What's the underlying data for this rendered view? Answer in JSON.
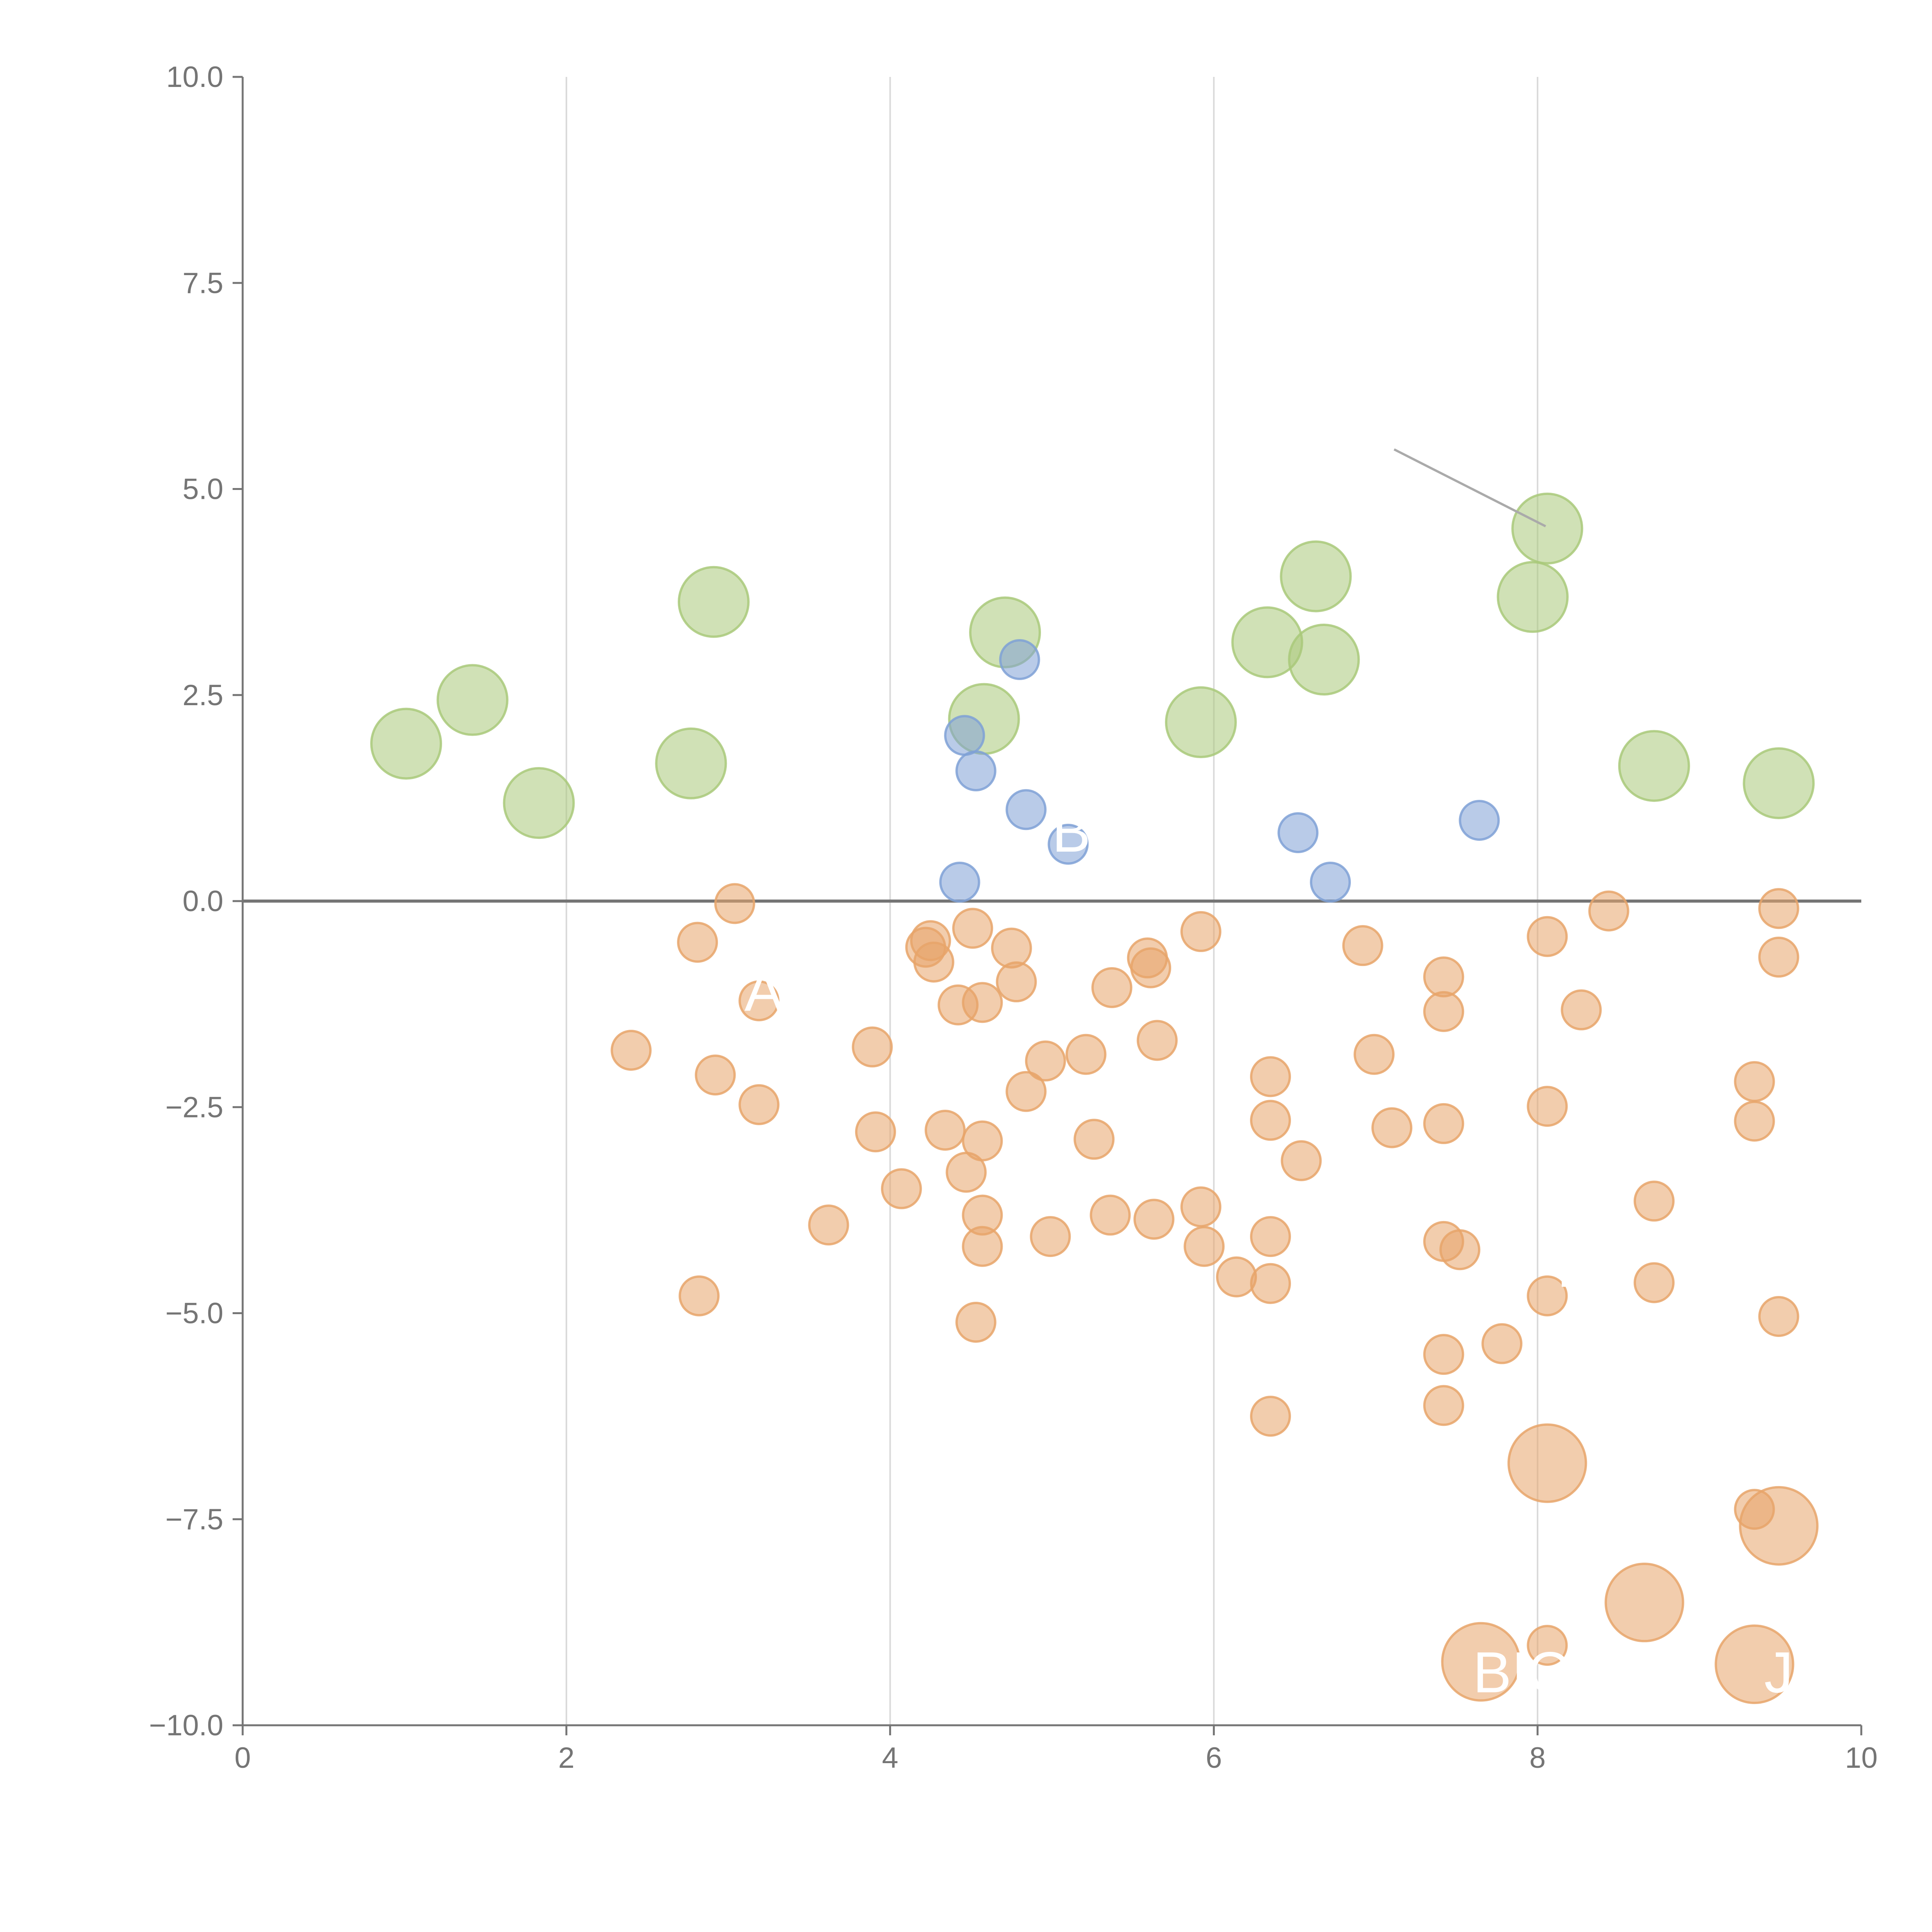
{
  "chart_data": {
    "type": "scatter",
    "title": "",
    "xlabel": "",
    "ylabel": "",
    "xlim": [
      0,
      10
    ],
    "ylim": [
      -10,
      10
    ],
    "x_ticks": [
      "0",
      "2",
      "4",
      "6",
      "8",
      "10"
    ],
    "y_ticks": [
      "10.0",
      "7.5",
      "5.0",
      "2.5",
      "0.0",
      "−2.5",
      "−5.0",
      "−7.5",
      "−10.0"
    ],
    "grid": "vertical",
    "zero_line": true,
    "colors": {
      "green": "#a9c97a",
      "blue": "#7fa1d6",
      "orange": "#e8a46a",
      "axis": "#757575",
      "grid": "#d9d9d9"
    },
    "series": [
      {
        "name": "green",
        "points": [
          [
            1.01,
            1.91,
            "L"
          ],
          [
            1.42,
            2.44,
            "L"
          ],
          [
            1.83,
            1.19,
            "L"
          ],
          [
            2.77,
            1.67,
            "L"
          ],
          [
            2.91,
            3.63,
            "L"
          ],
          [
            4.58,
            2.21,
            "L"
          ],
          [
            4.71,
            3.26,
            "L"
          ],
          [
            5.92,
            2.17,
            "L"
          ],
          [
            6.33,
            3.14,
            "L"
          ],
          [
            6.63,
            3.94,
            "L"
          ],
          [
            6.68,
            2.93,
            "L"
          ],
          [
            7.97,
            3.69,
            "L"
          ],
          [
            8.06,
            4.52,
            "L"
          ],
          [
            8.72,
            1.64,
            "L"
          ],
          [
            9.49,
            1.43,
            "L"
          ]
        ]
      },
      {
        "name": "blue",
        "points": [
          [
            4.43,
            0.23,
            "S"
          ],
          [
            4.46,
            2.01,
            "S"
          ],
          [
            4.53,
            1.58,
            "S"
          ],
          [
            4.8,
            2.93,
            "S"
          ],
          [
            4.84,
            1.11,
            "S"
          ],
          [
            5.1,
            0.69,
            "S"
          ],
          [
            6.52,
            0.83,
            "S"
          ],
          [
            6.72,
            0.23,
            "S"
          ],
          [
            7.64,
            0.98,
            "S"
          ]
        ]
      },
      {
        "name": "orange",
        "points": [
          [
            2.4,
            -1.81,
            "S"
          ],
          [
            2.81,
            -0.5,
            "S"
          ],
          [
            2.82,
            -4.79,
            "S"
          ],
          [
            2.92,
            -2.11,
            "S"
          ],
          [
            3.04,
            -0.03,
            "S"
          ],
          [
            3.19,
            -1.21,
            "S"
          ],
          [
            3.19,
            -2.47,
            "S"
          ],
          [
            3.62,
            -3.93,
            "S"
          ],
          [
            3.89,
            -1.77,
            "S"
          ],
          [
            3.91,
            -2.8,
            "S"
          ],
          [
            4.07,
            -3.49,
            "S"
          ],
          [
            4.22,
            -0.56,
            "S"
          ],
          [
            4.25,
            -0.48,
            "S"
          ],
          [
            4.27,
            -0.74,
            "S"
          ],
          [
            4.34,
            -2.78,
            "S"
          ],
          [
            4.42,
            -1.26,
            "S"
          ],
          [
            4.47,
            -3.29,
            "S"
          ],
          [
            4.51,
            -0.33,
            "S"
          ],
          [
            4.53,
            -5.11,
            "S"
          ],
          [
            4.57,
            -1.23,
            "S"
          ],
          [
            4.57,
            -2.91,
            "S"
          ],
          [
            4.57,
            -3.81,
            "S"
          ],
          [
            4.57,
            -4.19,
            "S"
          ],
          [
            4.75,
            -0.57,
            "S"
          ],
          [
            4.78,
            -0.98,
            "S"
          ],
          [
            4.84,
            -2.31,
            "S"
          ],
          [
            4.96,
            -1.94,
            "S"
          ],
          [
            4.99,
            -4.07,
            "S"
          ],
          [
            5.21,
            -1.86,
            "S"
          ],
          [
            5.26,
            -2.89,
            "S"
          ],
          [
            5.36,
            -3.81,
            "S"
          ],
          [
            5.37,
            -1.05,
            "S"
          ],
          [
            5.59,
            -0.69,
            "S"
          ],
          [
            5.61,
            -0.81,
            "S"
          ],
          [
            5.63,
            -3.86,
            "S"
          ],
          [
            5.65,
            -1.69,
            "S"
          ],
          [
            5.92,
            -0.37,
            "S"
          ],
          [
            5.92,
            -3.71,
            "S"
          ],
          [
            5.94,
            -4.19,
            "S"
          ],
          [
            6.14,
            -4.56,
            "S"
          ],
          [
            6.35,
            -2.13,
            "S"
          ],
          [
            6.35,
            -2.66,
            "S"
          ],
          [
            6.35,
            -4.07,
            "S"
          ],
          [
            6.35,
            -4.64,
            "S"
          ],
          [
            6.35,
            -6.25,
            "S"
          ],
          [
            6.54,
            -3.15,
            "S"
          ],
          [
            6.92,
            -0.54,
            "S"
          ],
          [
            6.99,
            -1.86,
            "S"
          ],
          [
            7.1,
            -2.75,
            "S"
          ],
          [
            7.42,
            -0.92,
            "S"
          ],
          [
            7.42,
            -1.34,
            "S"
          ],
          [
            7.42,
            -2.7,
            "S"
          ],
          [
            7.42,
            -4.13,
            "S"
          ],
          [
            7.42,
            -5.5,
            "S"
          ],
          [
            7.42,
            -6.12,
            "S"
          ],
          [
            7.52,
            -4.23,
            "S"
          ],
          [
            7.78,
            -5.37,
            "S"
          ],
          [
            8.06,
            -0.43,
            "S"
          ],
          [
            8.06,
            -2.49,
            "S"
          ],
          [
            8.06,
            -4.79,
            "S"
          ],
          [
            8.06,
            -9.03,
            "S"
          ],
          [
            8.27,
            -1.32,
            "S"
          ],
          [
            8.44,
            -0.12,
            "S"
          ],
          [
            8.72,
            -3.64,
            "S"
          ],
          [
            8.72,
            -4.63,
            "S"
          ],
          [
            9.34,
            -2.19,
            "S"
          ],
          [
            9.34,
            -2.67,
            "S"
          ],
          [
            9.34,
            -7.38,
            "S"
          ],
          [
            9.49,
            -0.09,
            "S"
          ],
          [
            9.49,
            -0.68,
            "S"
          ],
          [
            9.49,
            -5.04,
            "S"
          ],
          [
            7.65,
            -9.23,
            "L"
          ],
          [
            8.06,
            -6.82,
            "L"
          ],
          [
            8.66,
            -8.51,
            "L"
          ],
          [
            9.34,
            -9.26,
            "L"
          ],
          [
            9.49,
            -7.58,
            "L"
          ]
        ]
      }
    ],
    "annotations": [
      {
        "text": "A",
        "x": 3.1,
        "y": -1.33
      },
      {
        "text": "B",
        "x": 5.0,
        "y": 0.6
      },
      {
        "text": "D",
        "x": 8.12,
        "y": -4.68
      },
      {
        "text": "BIC",
        "x": 7.6,
        "y": -9.6
      },
      {
        "text": "JOL",
        "x": 9.4,
        "y": -9.6
      }
    ]
  }
}
